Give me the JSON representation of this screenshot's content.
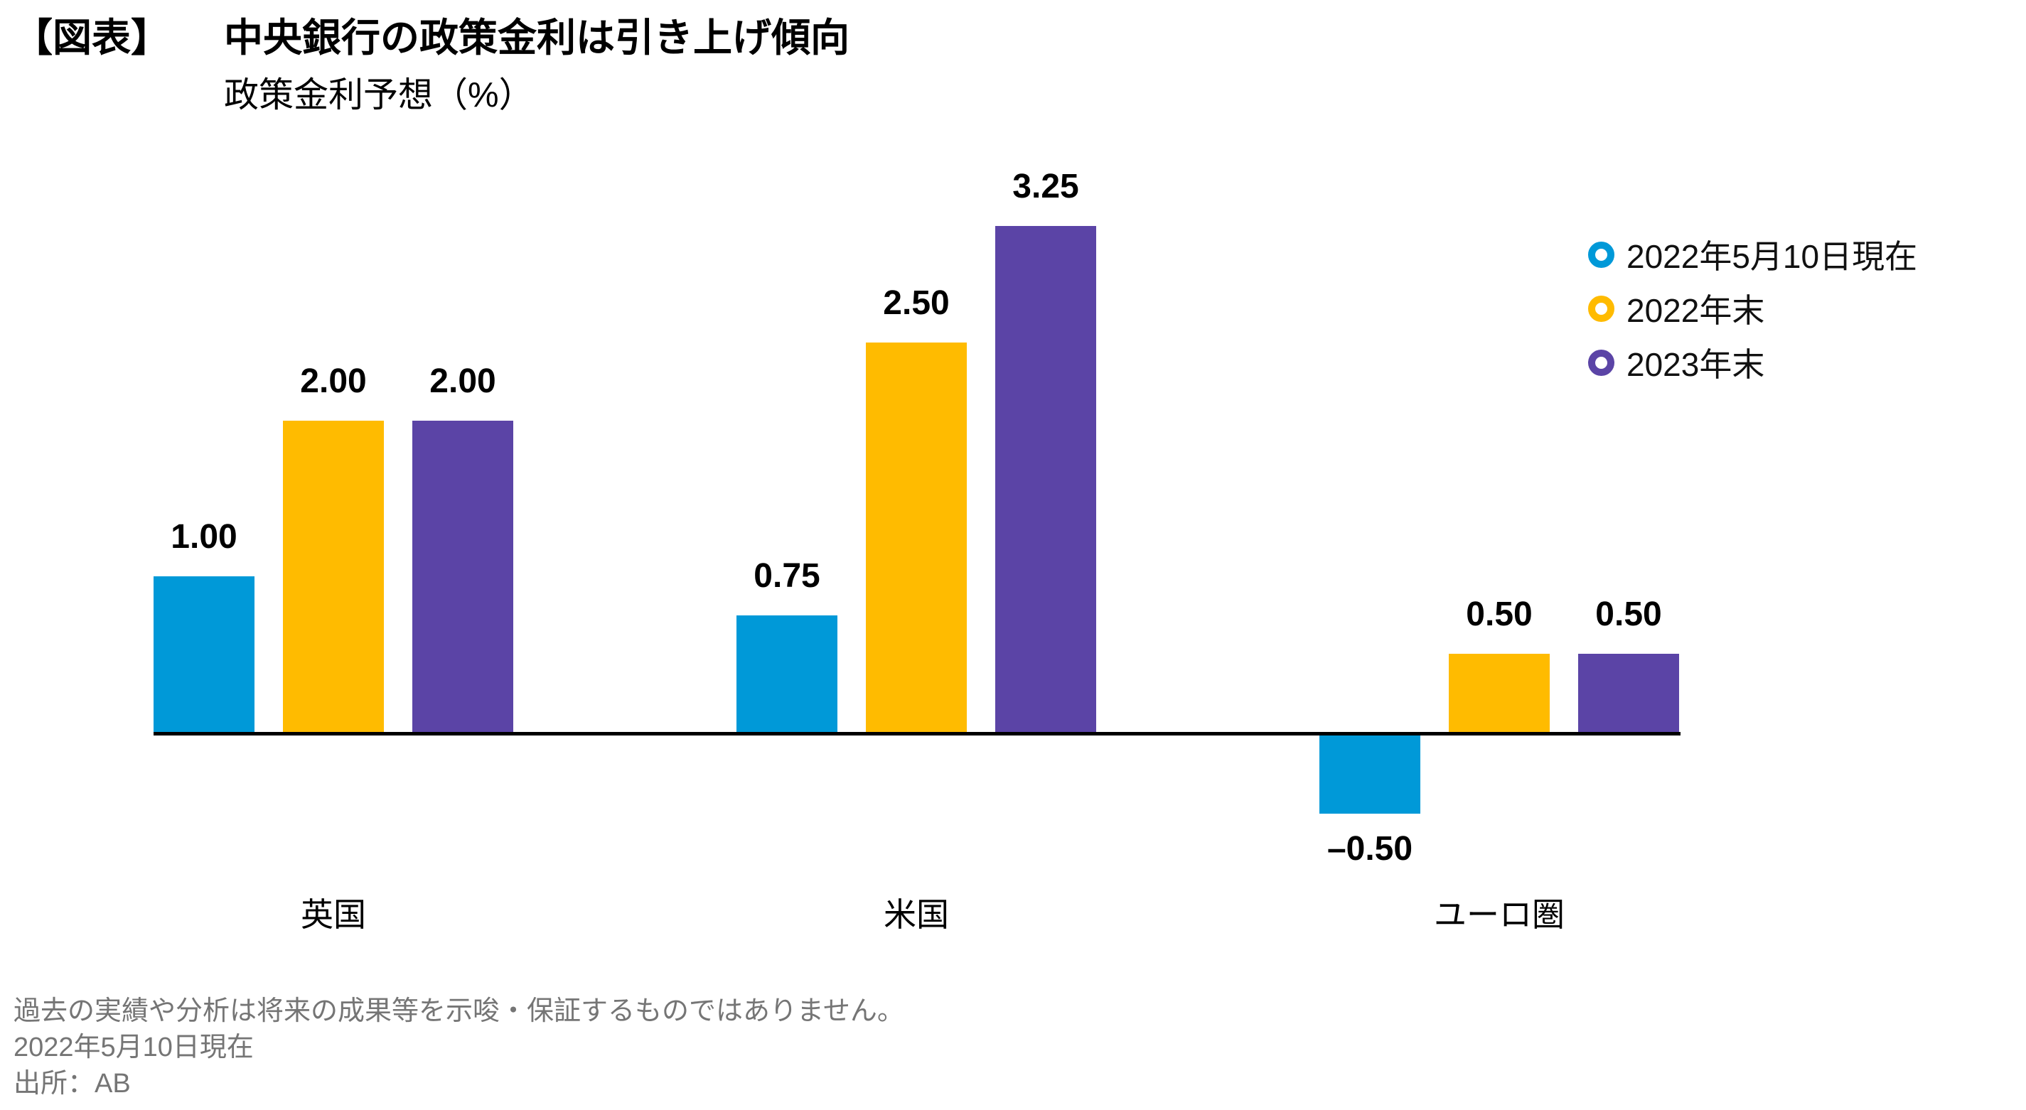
{
  "header": {
    "tag": "【図表】",
    "title": "中央銀行の政策金利は引き上げ傾向",
    "subtitle": "政策金利予想（%）"
  },
  "legend": {
    "items": [
      {
        "label": "2022年5月10日現在",
        "color": "#0099D8"
      },
      {
        "label": "2022年末",
        "color": "#FFBB00"
      },
      {
        "label": "2023年末",
        "color": "#5B44A6"
      }
    ]
  },
  "chart_data": {
    "type": "bar",
    "title": "中央銀行の政策金利は引き上げ傾向",
    "subtitle": "政策金利予想（%）",
    "ylabel": "政策金利予想（%）",
    "categories": [
      "英国",
      "米国",
      "ユーロ圏"
    ],
    "categories_key": [
      "uk",
      "us",
      "euro"
    ],
    "series": [
      {
        "name": "2022年5月10日現在",
        "key": "current",
        "color": "#0099D8",
        "values": [
          1.0,
          0.75,
          -0.5
        ],
        "value_labels": [
          "1.00",
          "0.75",
          "–0.50"
        ]
      },
      {
        "name": "2022年末",
        "key": "end-2022",
        "color": "#FFBB00",
        "values": [
          2.0,
          2.5,
          0.5
        ],
        "value_labels": [
          "2.00",
          "2.50",
          "0.50"
        ]
      },
      {
        "name": "2023年末",
        "key": "end-2023",
        "color": "#5B44A6",
        "values": [
          2.0,
          3.25,
          0.5
        ],
        "value_labels": [
          "2.00",
          "3.25",
          "0.50"
        ]
      }
    ],
    "baseline": 0,
    "ylim": [
      -0.5,
      3.25
    ],
    "grid": false,
    "axis_line_color": "#000000",
    "legend_position": "top-right"
  },
  "footer": {
    "disclaimer": "過去の実績や分析は将来の成果等を示唆・保証するものではありません。",
    "as_of": "2022年5月10日現在",
    "source": "出所：AB"
  }
}
